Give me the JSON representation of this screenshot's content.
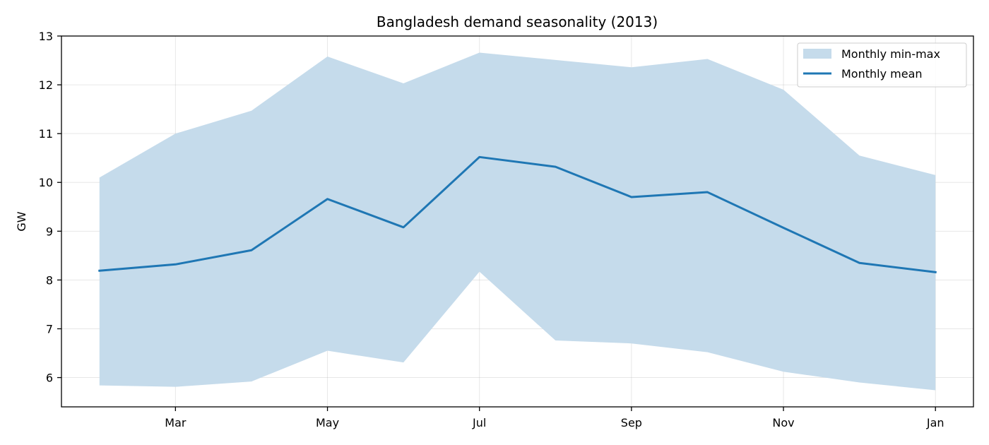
{
  "chart_data": {
    "type": "area",
    "title": "Bangladesh demand seasonality (2013)",
    "xlabel": "",
    "ylabel": "GW",
    "x_range": [
      1.5,
      13.5
    ],
    "ylim": [
      5.4,
      13.0
    ],
    "x_ticks": [
      {
        "x": 3,
        "label": "Mar"
      },
      {
        "x": 5,
        "label": "May"
      },
      {
        "x": 7,
        "label": "Jul"
      },
      {
        "x": 9,
        "label": "Sep"
      },
      {
        "x": 11,
        "label": "Nov"
      },
      {
        "x": 13,
        "label": "Jan"
      }
    ],
    "y_ticks": [
      6,
      7,
      8,
      9,
      10,
      11,
      12,
      13
    ],
    "grid": true,
    "legend_position": "top-right",
    "x": [
      2,
      3,
      4,
      5,
      6,
      7,
      8,
      9,
      10,
      11,
      12,
      13
    ],
    "series": [
      {
        "name": "Monthly min-max",
        "kind": "band",
        "color": "#c5dbeb",
        "lower": [
          5.84,
          5.81,
          5.92,
          6.55,
          6.31,
          8.17,
          6.76,
          6.7,
          6.52,
          6.12,
          5.9,
          5.74
        ],
        "upper": [
          10.1,
          11.0,
          11.47,
          12.58,
          12.03,
          12.66,
          12.51,
          12.36,
          12.53,
          11.9,
          10.55,
          10.15
        ]
      },
      {
        "name": "Monthly mean",
        "kind": "line",
        "color": "#1f77b4",
        "values": [
          8.19,
          8.32,
          8.61,
          9.66,
          9.08,
          10.52,
          10.32,
          9.7,
          9.8,
          9.07,
          8.35,
          8.16
        ]
      }
    ]
  }
}
